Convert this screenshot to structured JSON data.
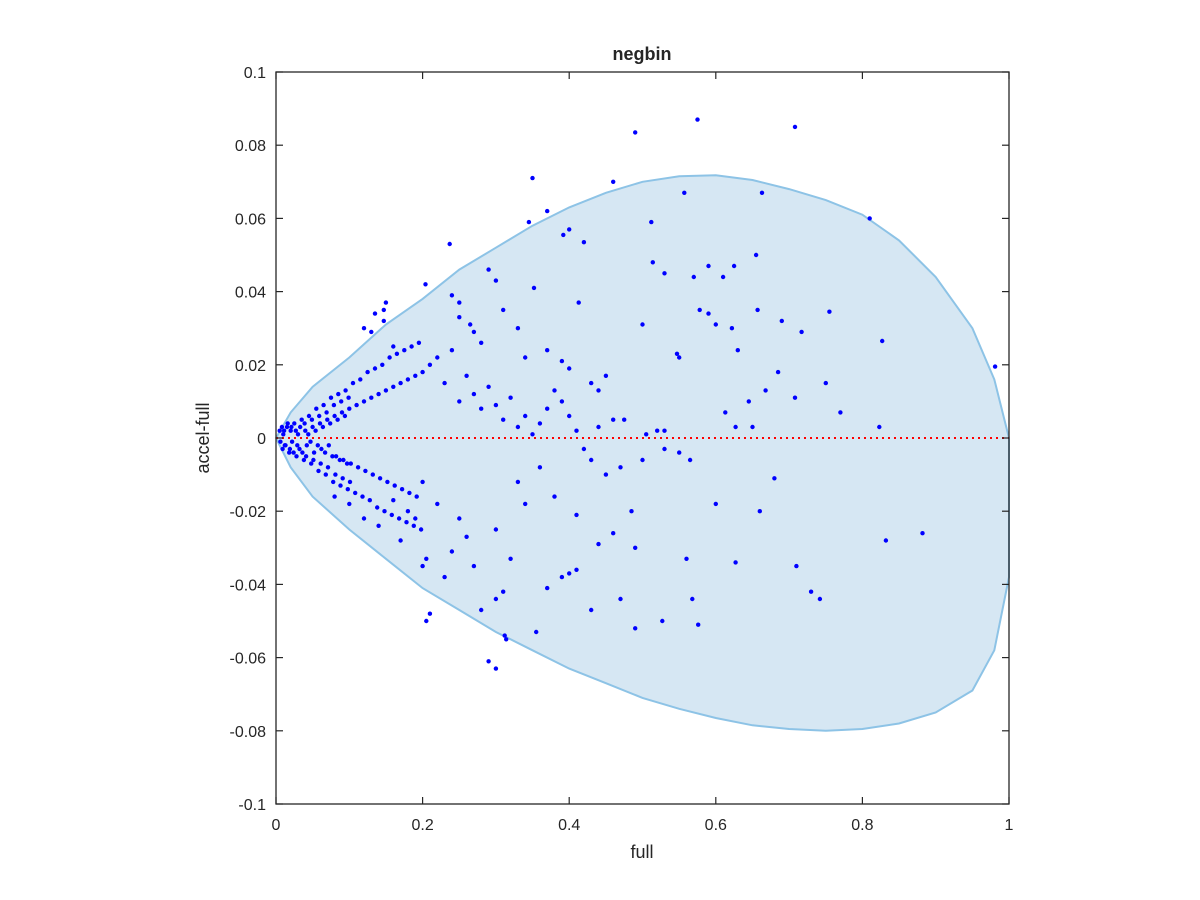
{
  "chart_data": {
    "type": "scatter",
    "title": "negbin",
    "xlabel": "full",
    "ylabel": "accel-full",
    "xlim": [
      0,
      1
    ],
    "ylim": [
      -0.1,
      0.1
    ],
    "x_ticks": [
      "0",
      "0.2",
      "0.4",
      "0.6",
      "0.8",
      "1"
    ],
    "x_tick_values": [
      0,
      0.2,
      0.4,
      0.6,
      0.8,
      1
    ],
    "y_ticks": [
      "0.1",
      "0.08",
      "0.06",
      "0.04",
      "0.02",
      "0",
      "-0.02",
      "-0.04",
      "-0.06",
      "-0.08",
      "-0.1"
    ],
    "y_tick_values": [
      0.1,
      0.08,
      0.06,
      0.04,
      0.02,
      0,
      -0.02,
      -0.04,
      -0.06,
      -0.08,
      -0.1
    ],
    "grid": false,
    "colors": {
      "points": "#0000ff",
      "region_fill": "#d6e7f3",
      "region_edge": "#8dc3e6",
      "zero_line": "#ff0000",
      "axes": "#262626"
    },
    "reference_line": {
      "y": 0,
      "style": "dotted"
    },
    "region_upper": [
      [
        0,
        0
      ],
      [
        0.02,
        0.007
      ],
      [
        0.05,
        0.014
      ],
      [
        0.1,
        0.022
      ],
      [
        0.15,
        0.031
      ],
      [
        0.2,
        0.038
      ],
      [
        0.25,
        0.046
      ],
      [
        0.3,
        0.052
      ],
      [
        0.35,
        0.058
      ],
      [
        0.4,
        0.063
      ],
      [
        0.45,
        0.067
      ],
      [
        0.5,
        0.07
      ],
      [
        0.55,
        0.0715
      ],
      [
        0.6,
        0.0718
      ],
      [
        0.65,
        0.0705
      ],
      [
        0.7,
        0.068
      ],
      [
        0.75,
        0.065
      ],
      [
        0.8,
        0.061
      ],
      [
        0.85,
        0.054
      ],
      [
        0.9,
        0.044
      ],
      [
        0.95,
        0.03
      ],
      [
        0.98,
        0.016
      ],
      [
        1.0,
        0
      ]
    ],
    "region_lower": [
      [
        0,
        0
      ],
      [
        0.02,
        -0.008
      ],
      [
        0.05,
        -0.016
      ],
      [
        0.1,
        -0.025
      ],
      [
        0.15,
        -0.033
      ],
      [
        0.2,
        -0.041
      ],
      [
        0.25,
        -0.047
      ],
      [
        0.3,
        -0.053
      ],
      [
        0.35,
        -0.058
      ],
      [
        0.4,
        -0.063
      ],
      [
        0.45,
        -0.067
      ],
      [
        0.5,
        -0.071
      ],
      [
        0.55,
        -0.074
      ],
      [
        0.6,
        -0.0765
      ],
      [
        0.65,
        -0.0785
      ],
      [
        0.7,
        -0.0795
      ],
      [
        0.75,
        -0.08
      ],
      [
        0.8,
        -0.0795
      ],
      [
        0.85,
        -0.078
      ],
      [
        0.9,
        -0.075
      ],
      [
        0.95,
        -0.069
      ],
      [
        0.98,
        -0.058
      ],
      [
        1.0,
        -0.038
      ]
    ],
    "points": [
      [
        0.575,
        0.087
      ],
      [
        0.708,
        0.085
      ],
      [
        0.49,
        0.0835
      ],
      [
        0.35,
        0.071
      ],
      [
        0.46,
        0.07
      ],
      [
        0.557,
        0.067
      ],
      [
        0.663,
        0.067
      ],
      [
        0.81,
        0.06
      ],
      [
        0.37,
        0.062
      ],
      [
        0.345,
        0.059
      ],
      [
        0.392,
        0.0555
      ],
      [
        0.512,
        0.059
      ],
      [
        0.42,
        0.0535
      ],
      [
        0.237,
        0.053
      ],
      [
        0.4,
        0.057
      ],
      [
        0.204,
        0.042
      ],
      [
        0.29,
        0.046
      ],
      [
        0.352,
        0.041
      ],
      [
        0.514,
        0.048
      ],
      [
        0.59,
        0.047
      ],
      [
        0.625,
        0.047
      ],
      [
        0.655,
        0.05
      ],
      [
        0.53,
        0.045
      ],
      [
        0.57,
        0.044
      ],
      [
        0.61,
        0.044
      ],
      [
        0.413,
        0.037
      ],
      [
        0.5,
        0.031
      ],
      [
        0.578,
        0.035
      ],
      [
        0.59,
        0.034
      ],
      [
        0.6,
        0.031
      ],
      [
        0.622,
        0.03
      ],
      [
        0.657,
        0.035
      ],
      [
        0.69,
        0.032
      ],
      [
        0.717,
        0.029
      ],
      [
        0.755,
        0.0345
      ],
      [
        0.827,
        0.0265
      ],
      [
        0.15,
        0.037
      ],
      [
        0.147,
        0.035
      ],
      [
        0.147,
        0.032
      ],
      [
        0.12,
        0.03
      ],
      [
        0.135,
        0.034
      ],
      [
        0.16,
        0.025
      ],
      [
        0.13,
        0.029
      ],
      [
        0.24,
        0.039
      ],
      [
        0.25,
        0.037
      ],
      [
        0.25,
        0.033
      ],
      [
        0.265,
        0.031
      ],
      [
        0.27,
        0.029
      ],
      [
        0.28,
        0.026
      ],
      [
        0.3,
        0.043
      ],
      [
        0.31,
        0.035
      ],
      [
        0.33,
        0.03
      ],
      [
        0.34,
        0.022
      ],
      [
        0.37,
        0.024
      ],
      [
        0.39,
        0.021
      ],
      [
        0.4,
        0.019
      ],
      [
        0.43,
        0.015
      ],
      [
        0.44,
        0.013
      ],
      [
        0.45,
        0.017
      ],
      [
        0.46,
        0.005
      ],
      [
        0.475,
        0.005
      ],
      [
        0.505,
        0.001
      ],
      [
        0.55,
        0.022
      ],
      [
        0.547,
        0.023
      ],
      [
        0.63,
        0.024
      ],
      [
        0.685,
        0.018
      ],
      [
        0.75,
        0.015
      ],
      [
        0.77,
        0.007
      ],
      [
        0.708,
        0.011
      ],
      [
        0.668,
        0.013
      ],
      [
        0.613,
        0.007
      ],
      [
        0.627,
        0.003
      ],
      [
        0.65,
        0.003
      ],
      [
        0.645,
        0.01
      ],
      [
        0.823,
        0.003
      ],
      [
        0.981,
        0.0195
      ],
      [
        0.5,
        -0.006
      ],
      [
        0.52,
        0.002
      ],
      [
        0.53,
        0.002
      ],
      [
        0.53,
        -0.003
      ],
      [
        0.55,
        -0.004
      ],
      [
        0.565,
        -0.006
      ],
      [
        0.6,
        -0.018
      ],
      [
        0.66,
        -0.02
      ],
      [
        0.68,
        -0.011
      ],
      [
        0.627,
        -0.034
      ],
      [
        0.56,
        -0.033
      ],
      [
        0.568,
        -0.044
      ],
      [
        0.576,
        -0.051
      ],
      [
        0.527,
        -0.05
      ],
      [
        0.49,
        -0.052
      ],
      [
        0.47,
        -0.044
      ],
      [
        0.43,
        -0.047
      ],
      [
        0.44,
        -0.029
      ],
      [
        0.46,
        -0.026
      ],
      [
        0.39,
        -0.038
      ],
      [
        0.4,
        -0.037
      ],
      [
        0.41,
        -0.036
      ],
      [
        0.37,
        -0.041
      ],
      [
        0.355,
        -0.053
      ],
      [
        0.312,
        -0.054
      ],
      [
        0.314,
        -0.055
      ],
      [
        0.3,
        -0.063
      ],
      [
        0.29,
        -0.061
      ],
      [
        0.28,
        -0.047
      ],
      [
        0.3,
        -0.044
      ],
      [
        0.31,
        -0.042
      ],
      [
        0.205,
        -0.05
      ],
      [
        0.21,
        -0.048
      ],
      [
        0.2,
        -0.035
      ],
      [
        0.71,
        -0.035
      ],
      [
        0.73,
        -0.042
      ],
      [
        0.742,
        -0.044
      ],
      [
        0.832,
        -0.028
      ],
      [
        0.882,
        -0.026
      ],
      [
        0.485,
        -0.02
      ],
      [
        0.49,
        -0.03
      ],
      [
        0.45,
        -0.01
      ],
      [
        0.47,
        -0.008
      ],
      [
        0.41,
        -0.021
      ],
      [
        0.38,
        -0.016
      ],
      [
        0.36,
        -0.008
      ],
      [
        0.33,
        -0.012
      ],
      [
        0.34,
        -0.018
      ],
      [
        0.3,
        -0.025
      ],
      [
        0.32,
        -0.033
      ],
      [
        0.27,
        -0.035
      ],
      [
        0.26,
        -0.027
      ],
      [
        0.24,
        -0.031
      ],
      [
        0.23,
        -0.038
      ],
      [
        0.25,
        -0.022
      ],
      [
        0.22,
        -0.018
      ],
      [
        0.2,
        -0.012
      ],
      [
        0.18,
        -0.02
      ],
      [
        0.16,
        -0.017
      ],
      [
        0.14,
        -0.024
      ],
      [
        0.12,
        -0.022
      ],
      [
        0.1,
        -0.018
      ],
      [
        0.08,
        -0.016
      ],
      [
        0.17,
        -0.028
      ],
      [
        0.19,
        -0.022
      ],
      [
        0.205,
        -0.033
      ],
      [
        0.01,
        0.001
      ],
      [
        0.012,
        -0.002
      ],
      [
        0.015,
        0.003
      ],
      [
        0.018,
        -0.004
      ],
      [
        0.02,
        0.002
      ],
      [
        0.022,
        -0.001
      ],
      [
        0.025,
        0.004
      ],
      [
        0.028,
        -0.005
      ],
      [
        0.03,
        0.001
      ],
      [
        0.032,
        -0.003
      ],
      [
        0.035,
        0.005
      ],
      [
        0.038,
        -0.006
      ],
      [
        0.04,
        0.002
      ],
      [
        0.042,
        -0.002
      ],
      [
        0.045,
        0.006
      ],
      [
        0.048,
        -0.007
      ],
      [
        0.05,
        0.003
      ],
      [
        0.052,
        -0.004
      ],
      [
        0.055,
        0.008
      ],
      [
        0.058,
        -0.009
      ],
      [
        0.06,
        0.004
      ],
      [
        0.062,
        -0.003
      ],
      [
        0.065,
        0.009
      ],
      [
        0.068,
        -0.01
      ],
      [
        0.07,
        0.005
      ],
      [
        0.072,
        -0.002
      ],
      [
        0.075,
        0.011
      ],
      [
        0.078,
        -0.012
      ],
      [
        0.08,
        0.006
      ],
      [
        0.082,
        -0.005
      ],
      [
        0.085,
        0.012
      ],
      [
        0.088,
        -0.013
      ],
      [
        0.09,
        0.007
      ],
      [
        0.092,
        -0.006
      ],
      [
        0.095,
        0.013
      ],
      [
        0.098,
        -0.014
      ],
      [
        0.1,
        0.008
      ],
      [
        0.102,
        -0.007
      ],
      [
        0.105,
        0.015
      ],
      [
        0.108,
        -0.015
      ],
      [
        0.11,
        0.009
      ],
      [
        0.112,
        -0.008
      ],
      [
        0.115,
        0.016
      ],
      [
        0.118,
        -0.016
      ],
      [
        0.12,
        0.01
      ],
      [
        0.122,
        -0.009
      ],
      [
        0.125,
        0.018
      ],
      [
        0.128,
        -0.017
      ],
      [
        0.13,
        0.011
      ],
      [
        0.132,
        -0.01
      ],
      [
        0.135,
        0.019
      ],
      [
        0.138,
        -0.019
      ],
      [
        0.14,
        0.012
      ],
      [
        0.142,
        -0.011
      ],
      [
        0.145,
        0.02
      ],
      [
        0.148,
        -0.02
      ],
      [
        0.15,
        0.013
      ],
      [
        0.152,
        -0.012
      ],
      [
        0.155,
        0.022
      ],
      [
        0.158,
        -0.021
      ],
      [
        0.16,
        0.014
      ],
      [
        0.162,
        -0.013
      ],
      [
        0.165,
        0.023
      ],
      [
        0.168,
        -0.022
      ],
      [
        0.17,
        0.015
      ],
      [
        0.172,
        -0.014
      ],
      [
        0.175,
        0.024
      ],
      [
        0.178,
        -0.023
      ],
      [
        0.18,
        0.016
      ],
      [
        0.182,
        -0.015
      ],
      [
        0.185,
        0.025
      ],
      [
        0.188,
        -0.024
      ],
      [
        0.19,
        0.017
      ],
      [
        0.192,
        -0.016
      ],
      [
        0.195,
        0.026
      ],
      [
        0.198,
        -0.025
      ],
      [
        0.2,
        0.018
      ],
      [
        0.21,
        0.02
      ],
      [
        0.22,
        0.022
      ],
      [
        0.23,
        0.015
      ],
      [
        0.24,
        0.024
      ],
      [
        0.25,
        0.01
      ],
      [
        0.26,
        0.017
      ],
      [
        0.27,
        0.012
      ],
      [
        0.28,
        0.008
      ],
      [
        0.29,
        0.014
      ],
      [
        0.3,
        0.009
      ],
      [
        0.31,
        0.005
      ],
      [
        0.32,
        0.011
      ],
      [
        0.33,
        0.003
      ],
      [
        0.34,
        0.006
      ],
      [
        0.35,
        0.001
      ],
      [
        0.36,
        0.004
      ],
      [
        0.37,
        0.008
      ],
      [
        0.38,
        0.013
      ],
      [
        0.39,
        0.01
      ],
      [
        0.4,
        0.006
      ],
      [
        0.41,
        0.002
      ],
      [
        0.42,
        -0.003
      ],
      [
        0.43,
        -0.006
      ],
      [
        0.44,
        0.003
      ],
      [
        0.005,
        0.002
      ],
      [
        0.006,
        -0.001
      ],
      [
        0.008,
        0.003
      ],
      [
        0.009,
        -0.003
      ],
      [
        0.011,
        0.002
      ],
      [
        0.013,
        -0.002
      ],
      [
        0.016,
        0.004
      ],
      [
        0.019,
        -0.003
      ],
      [
        0.021,
        0.003
      ],
      [
        0.024,
        -0.004
      ],
      [
        0.027,
        0.002
      ],
      [
        0.029,
        -0.002
      ],
      [
        0.033,
        0.003
      ],
      [
        0.036,
        -0.004
      ],
      [
        0.039,
        0.004
      ],
      [
        0.041,
        -0.005
      ],
      [
        0.044,
        0.001
      ],
      [
        0.047,
        -0.001
      ],
      [
        0.049,
        0.005
      ],
      [
        0.051,
        -0.006
      ],
      [
        0.054,
        0.002
      ],
      [
        0.057,
        -0.002
      ],
      [
        0.059,
        0.006
      ],
      [
        0.061,
        -0.007
      ],
      [
        0.064,
        0.003
      ],
      [
        0.067,
        -0.004
      ],
      [
        0.069,
        0.007
      ],
      [
        0.071,
        -0.008
      ],
      [
        0.074,
        0.004
      ],
      [
        0.077,
        -0.005
      ],
      [
        0.079,
        0.009
      ],
      [
        0.081,
        -0.01
      ],
      [
        0.084,
        0.005
      ],
      [
        0.087,
        -0.006
      ],
      [
        0.089,
        0.01
      ],
      [
        0.091,
        -0.011
      ],
      [
        0.094,
        0.006
      ],
      [
        0.097,
        -0.007
      ],
      [
        0.099,
        0.011
      ],
      [
        0.101,
        -0.012
      ]
    ]
  }
}
